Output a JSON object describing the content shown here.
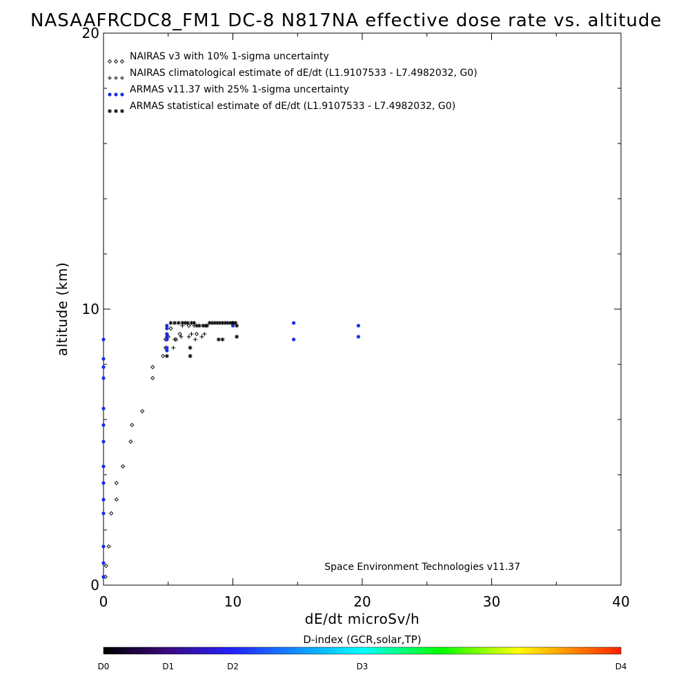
{
  "chart_data": {
    "type": "scatter",
    "title": "NASAAFRCDC8_FM1 DC-8   N817NA effective dose rate vs. altitude",
    "xlabel": "dE/dt microSv/h",
    "ylabel": "altitude (km)",
    "xlim": [
      0,
      40
    ],
    "ylim": [
      0,
      20
    ],
    "x_ticks": [
      "0",
      "10",
      "20",
      "30",
      "40"
    ],
    "y_ticks": [
      "0",
      "10",
      "20"
    ],
    "legend_placement": "top-left",
    "credit": "Space Environment Technologies v11.37",
    "series": [
      {
        "name": "NAIRAS v3 with 10% 1-sigma uncertainty",
        "marker": "diamond",
        "color": "#000000",
        "points": [
          [
            0.15,
            0.3
          ],
          [
            0.2,
            0.7
          ],
          [
            0.4,
            1.4
          ],
          [
            0.6,
            2.6
          ],
          [
            1.0,
            3.1
          ],
          [
            1.0,
            3.7
          ],
          [
            1.5,
            4.3
          ],
          [
            2.1,
            5.2
          ],
          [
            2.2,
            5.8
          ],
          [
            3.0,
            6.3
          ],
          [
            3.8,
            7.5
          ],
          [
            3.8,
            7.9
          ],
          [
            4.6,
            8.3
          ],
          [
            4.8,
            8.6
          ],
          [
            4.8,
            8.9
          ],
          [
            5.0,
            9.0
          ],
          [
            5.2,
            9.3
          ],
          [
            5.6,
            8.9
          ],
          [
            5.9,
            9.1
          ],
          [
            6.6,
            9.4
          ],
          [
            7.2,
            9.1
          ]
        ]
      },
      {
        "name": "NAIRAS climatological estimate of dE/dt (L1.9107533 - L7.4982032, G0)",
        "marker": "plus",
        "color": "#000000",
        "points": [
          [
            5.4,
            8.6
          ],
          [
            5.5,
            8.9
          ],
          [
            6.0,
            9.0
          ],
          [
            6.1,
            9.4
          ],
          [
            6.6,
            9.0
          ],
          [
            6.7,
            8.3
          ],
          [
            6.8,
            9.1
          ],
          [
            7.0,
            9.4
          ],
          [
            7.1,
            8.9
          ],
          [
            7.6,
            9.0
          ],
          [
            7.8,
            9.1
          ]
        ]
      },
      {
        "name": "ARMAS v11.37 with 25% 1-sigma uncertainty",
        "marker": "dot",
        "color": "#1a2ee0",
        "points": [
          [
            0.0,
            0.3
          ],
          [
            0.0,
            0.8
          ],
          [
            0.0,
            1.4
          ],
          [
            0.0,
            2.6
          ],
          [
            0.0,
            3.1
          ],
          [
            0.0,
            3.7
          ],
          [
            0.0,
            4.3
          ],
          [
            0.0,
            5.2
          ],
          [
            0.0,
            5.8
          ],
          [
            0.0,
            6.4
          ],
          [
            0.0,
            7.5
          ],
          [
            0.0,
            7.9
          ],
          [
            0.0,
            8.2
          ],
          [
            0.0,
            8.9
          ],
          [
            4.9,
            8.5
          ],
          [
            4.9,
            8.6
          ],
          [
            4.9,
            8.9
          ],
          [
            4.9,
            9.0
          ],
          [
            4.9,
            9.1
          ],
          [
            4.9,
            9.3
          ],
          [
            4.9,
            9.4
          ],
          [
            10.0,
            9.4
          ],
          [
            10.0,
            9.5
          ],
          [
            14.7,
            8.9
          ],
          [
            14.7,
            9.5
          ],
          [
            19.7,
            9.0
          ],
          [
            19.7,
            9.4
          ]
        ]
      },
      {
        "name": "ARMAS statistical estimate of dE/dt (L1.9107533 - L7.4982032, G0)",
        "marker": "asterisk",
        "color": "#000000",
        "points": [
          [
            4.9,
            8.3
          ],
          [
            5.2,
            9.5
          ],
          [
            5.5,
            9.5
          ],
          [
            5.8,
            9.5
          ],
          [
            6.1,
            9.5
          ],
          [
            6.3,
            9.5
          ],
          [
            6.5,
            9.5
          ],
          [
            6.7,
            8.6
          ],
          [
            6.7,
            8.3
          ],
          [
            6.8,
            9.5
          ],
          [
            7.0,
            9.5
          ],
          [
            7.2,
            9.4
          ],
          [
            7.4,
            9.4
          ],
          [
            7.7,
            9.4
          ],
          [
            7.9,
            9.4
          ],
          [
            8.0,
            9.4
          ],
          [
            8.2,
            9.5
          ],
          [
            8.4,
            9.5
          ],
          [
            8.6,
            9.5
          ],
          [
            8.8,
            9.5
          ],
          [
            9.0,
            9.5
          ],
          [
            9.2,
            9.5
          ],
          [
            9.4,
            9.5
          ],
          [
            9.6,
            9.5
          ],
          [
            9.8,
            9.5
          ],
          [
            10.0,
            9.5
          ],
          [
            10.2,
            9.5
          ],
          [
            10.3,
            9.4
          ],
          [
            10.3,
            9.0
          ],
          [
            9.2,
            8.9
          ],
          [
            8.9,
            8.9
          ]
        ]
      }
    ],
    "colorbar": {
      "title": "D-index (GCR,solar,TP)",
      "labels": [
        "D0",
        "D1",
        "D2",
        "D3",
        "D4"
      ],
      "label_positions": [
        0,
        0.125,
        0.25,
        0.5,
        1.0
      ],
      "colors": [
        "#000000",
        "#3a0a80",
        "#2222ff",
        "#00ffff",
        "#00ff00",
        "#ffff00",
        "#ff2000"
      ],
      "color_stops": [
        0,
        0.125,
        0.25,
        0.5,
        0.65,
        0.8,
        1.0
      ]
    }
  }
}
